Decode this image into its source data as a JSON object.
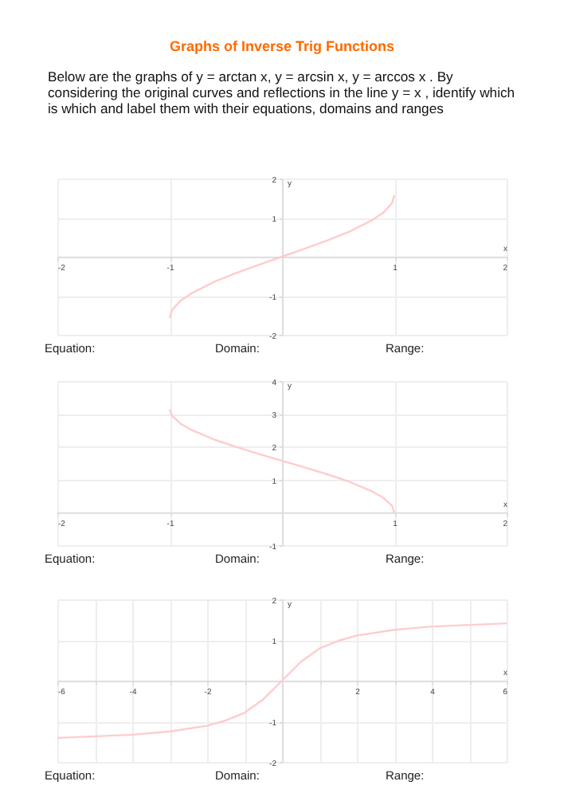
{
  "chart_data": [
    {
      "type": "line",
      "title": "Graphs of Inverse Trig Functions",
      "subtitle": "Below are the graphs of  y = arctan x, y = arcsin x, y = arccos x . By considering the original curves and reflections in the line  y = x , identify which is which and label them with their equations, domains and ranges",
      "xlabel": "x",
      "ylabel": "y",
      "x": [
        -1,
        -0.98,
        -0.9,
        -0.8,
        -0.6,
        -0.4,
        -0.2,
        0,
        0.2,
        0.4,
        0.6,
        0.8,
        0.9,
        0.98,
        1
      ],
      "series": [
        {
          "color": "#ffcccc",
          "values": [
            -1.57,
            -1.37,
            -1.12,
            -0.93,
            -0.64,
            -0.41,
            -0.2,
            0,
            0.2,
            0.41,
            0.64,
            0.93,
            1.12,
            1.37,
            1.57
          ]
        }
      ],
      "xlim": [
        -2,
        2
      ],
      "xticks": [
        -2,
        -1,
        1,
        2
      ],
      "ylim": [
        -2,
        2
      ],
      "yticks": [
        -2,
        -1,
        1,
        2
      ],
      "grid": true,
      "annotations": [
        "Equation:",
        "Domain:",
        "Range:"
      ]
    },
    {
      "type": "line",
      "xlabel": "x",
      "ylabel": "y",
      "x": [
        -1,
        -0.98,
        -0.9,
        -0.8,
        -0.6,
        -0.4,
        -0.2,
        0,
        0.2,
        0.4,
        0.6,
        0.8,
        0.9,
        0.98,
        1
      ],
      "series": [
        {
          "color": "#ffcccc",
          "values": [
            3.14,
            2.94,
            2.69,
            2.5,
            2.21,
            1.98,
            1.77,
            1.57,
            1.37,
            1.16,
            0.93,
            0.64,
            0.45,
            0.2,
            0
          ]
        }
      ],
      "xlim": [
        -2,
        2
      ],
      "xticks": [
        -2,
        -1,
        1,
        2
      ],
      "ylim": [
        -1,
        4
      ],
      "yticks": [
        -1,
        1,
        2,
        3,
        4
      ],
      "grid": true,
      "annotations": [
        "Equation:",
        "Domain:",
        "Range:"
      ]
    },
    {
      "type": "line",
      "xlabel": "x",
      "ylabel": "y",
      "x": [
        -6,
        -5,
        -4,
        -3,
        -2,
        -1.5,
        -1,
        -0.5,
        0,
        0.5,
        1,
        1.5,
        2,
        3,
        4,
        5,
        6
      ],
      "series": [
        {
          "color": "#ffcccc",
          "values": [
            -1.41,
            -1.37,
            -1.33,
            -1.25,
            -1.11,
            -0.98,
            -0.79,
            -0.46,
            0,
            0.46,
            0.79,
            0.98,
            1.11,
            1.25,
            1.33,
            1.37,
            1.41
          ]
        }
      ],
      "xlim": [
        -6,
        6
      ],
      "xticks": [
        -6,
        {
          "value": -5,
          "label": null
        },
        -4,
        {
          "value": -3,
          "label": null
        },
        -2,
        {
          "value": -1,
          "label": null
        },
        {
          "value": 1,
          "label": null
        },
        2,
        {
          "value": 3,
          "label": null
        },
        4,
        {
          "value": 5,
          "label": null
        },
        6
      ],
      "ylim": [
        -2,
        2
      ],
      "yticks": [
        -2,
        -1,
        1,
        2
      ],
      "grid": true,
      "annotations": [
        "Equation:",
        "Domain:",
        "Range:"
      ]
    }
  ]
}
